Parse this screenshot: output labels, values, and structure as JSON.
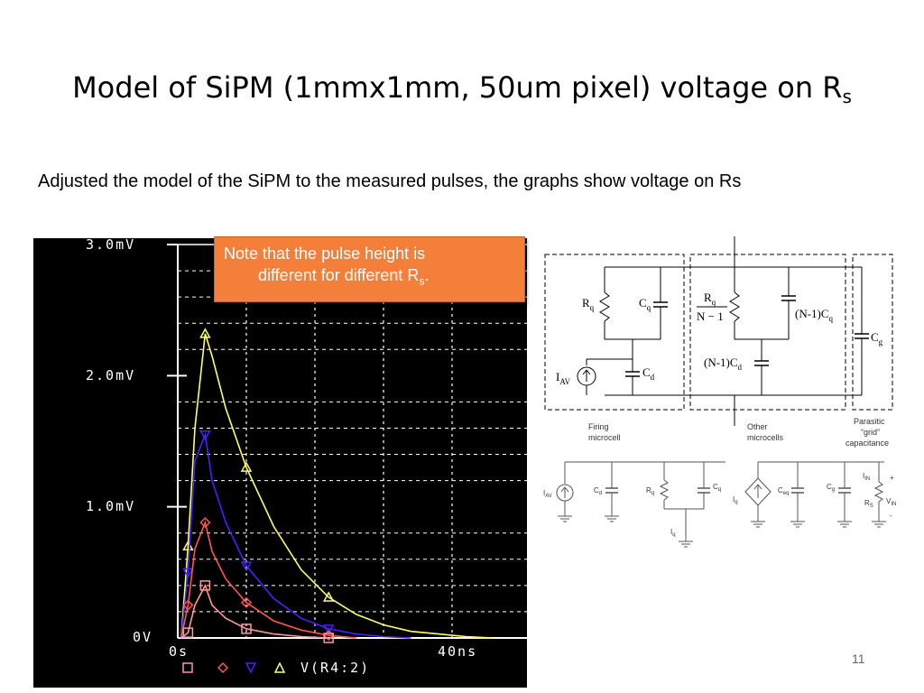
{
  "slide": {
    "title_main": "Model of SiPM (1mmx1mm, 50um pixel) voltage on R",
    "title_sub": "s",
    "bullet": "Adjusted the model of the SiPM to the measured pulses, the graphs show voltage on Rs",
    "page_number": "11"
  },
  "callout": {
    "line1": "Note that the pulse height is",
    "line2": "different for different R",
    "line2_sub": "s",
    "line2_end": "."
  },
  "scope": {
    "y_ticks": [
      "3.0mV",
      "2.0mV",
      "1.0mV",
      "0V"
    ],
    "x_ticks": [
      "0s",
      "40ns"
    ],
    "legend_label": "V(R4:2)",
    "colors": {
      "background": "#000000",
      "axis": "#ffffff",
      "yellow": "#ffff66",
      "blue": "#4422ff",
      "red": "#ff5555",
      "pink": "#ff9999"
    }
  },
  "chart_data": {
    "type": "line",
    "xlabel": "",
    "ylabel": "",
    "xlim": [
      0,
      50
    ],
    "ylim": [
      0,
      3.0
    ],
    "grid": true,
    "series": [
      {
        "color": "#ffff66",
        "marker": "triangle",
        "x": [
          0.5,
          1.5,
          2.5,
          4,
          5,
          7,
          10,
          14,
          18,
          22,
          26,
          30,
          34,
          38,
          42,
          46
        ],
        "values": [
          0,
          0.7,
          1.6,
          2.32,
          2.15,
          1.75,
          1.3,
          0.85,
          0.52,
          0.31,
          0.18,
          0.1,
          0.05,
          0.03,
          0.01,
          0
        ]
      },
      {
        "color": "#4422ff",
        "marker": "triangle-down",
        "x": [
          0.5,
          1.5,
          2.5,
          4,
          5,
          7,
          10,
          14,
          18,
          22,
          26,
          30,
          34
        ],
        "values": [
          0,
          0.5,
          1.35,
          1.55,
          1.2,
          0.88,
          0.55,
          0.3,
          0.15,
          0.07,
          0.03,
          0.01,
          0
        ]
      },
      {
        "color": "#ff5555",
        "marker": "diamond",
        "x": [
          0.5,
          1.5,
          2.5,
          4,
          5,
          7,
          10,
          14,
          18,
          22,
          26
        ],
        "values": [
          0,
          0.25,
          0.68,
          0.88,
          0.66,
          0.45,
          0.27,
          0.13,
          0.06,
          0.02,
          0
        ]
      },
      {
        "color": "#ff9999",
        "marker": "square",
        "x": [
          0.5,
          1.5,
          2.5,
          4,
          5,
          7,
          10,
          14,
          18,
          22
        ],
        "values": [
          0,
          0.04,
          0.25,
          0.4,
          0.25,
          0.15,
          0.07,
          0.03,
          0.01,
          0
        ]
      }
    ]
  },
  "circuit": {
    "labels": {
      "rq": "R",
      "rq_sub": "q",
      "cq": "C",
      "cq_sub": "q",
      "cd": "C",
      "cd_sub": "d",
      "iav": "I",
      "iav_sub": "AV",
      "rq_num": "R",
      "rq_num_sub": "q",
      "rq_den": "N − 1",
      "n1cq": "(N-1)C",
      "n1cq_sub": "q",
      "n1cd": "(N-1)C",
      "n1cd_sub": "d",
      "cg": "C",
      "cg_sub": "g"
    },
    "captions": {
      "firing1": "Firing",
      "firing2": "microcell",
      "other1": "Other",
      "other2": "microcells",
      "parasitic1": "Parasitic",
      "parasitic2": "“grid”",
      "parasitic3": "capacitance"
    },
    "lower": {
      "iav": "I",
      "iav_sub": "AV",
      "cd": "C",
      "cd_sub": "d",
      "rq": "R",
      "rq_sub": "q",
      "cq": "C",
      "cq_sub": "q",
      "iq": "I",
      "iq_sub": "q",
      "iq2": "I",
      "iq2_sub": "q",
      "ceq": "C",
      "ceq_sub": "eq",
      "cg": "C",
      "cg_sub": "g",
      "iin": "I",
      "iin_sub": "IN",
      "rs": "R",
      "rs_sub": "S",
      "vin": "V",
      "vin_sub": "IN",
      "plus": "+",
      "minus": "-"
    }
  }
}
